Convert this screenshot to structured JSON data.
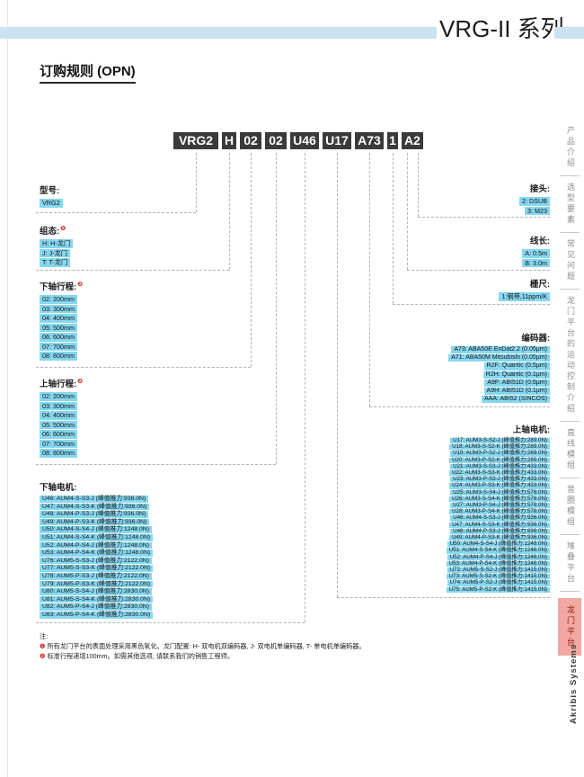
{
  "page": {
    "title": "VRG-II 系列",
    "section_heading": "订购规则 (OPN)",
    "brand": "Akribis Systems",
    "notes_heading": "注:"
  },
  "order_code": {
    "segments": [
      "VRG2",
      "H",
      "02",
      "02",
      "U46",
      "U17",
      "A73",
      "1",
      "A2"
    ]
  },
  "groups": {
    "model": {
      "label": "型号:",
      "sup": "",
      "items": [
        "VRG2"
      ]
    },
    "config": {
      "label": "组态:",
      "sup": "❶",
      "items": [
        "H: H-龙门",
        "J: J-龙门",
        "T: T-龙门"
      ]
    },
    "lower_stroke": {
      "label": "下轴行程:",
      "sup": "❷",
      "items": [
        "02: 200mm",
        "03: 300mm",
        "04: 400mm",
        "05: 500mm",
        "06: 600mm",
        "07: 700mm",
        "08: 800mm"
      ]
    },
    "upper_stroke": {
      "label": "上轴行程:",
      "sup": "❷",
      "items": [
        "02: 200mm",
        "03: 300mm",
        "04: 400mm",
        "05: 500mm",
        "06: 600mm",
        "07: 700mm",
        "08: 800mm"
      ]
    },
    "lower_motor": {
      "label": "下轴电机:",
      "sup": "",
      "items": [
        "U46: AUM4-S-S3-J (峰值推力:936.0N)",
        "U47: AUM4-S-S3-K (峰值推力:936.0N)",
        "U48: AUM4-P-S3-J (峰值推力:936.0N)",
        "U49: AUM4-P-S3-K (峰值推力:936.0N)",
        "U50: AUM4-S-S4-J (峰值推力:1248.0N)",
        "U51: AUM4-S-S4-K (峰值推力:1248.0N)",
        "U52: AUM4-P-S4-J (峰值推力:1248.0N)",
        "U53: AUM4-P-S4-K (峰值推力:1248.0N)",
        "U76: AUM5-S-S3-J (峰值推力:2122.0N)",
        "U77: AUM5-S-S3-K (峰值推力:2122.0N)",
        "U78: AUM5-P-S3-J (峰值推力:2122.0N)",
        "U79: AUM5-P-S3-K (峰值推力:2122.0N)",
        "U80: AUM5-S-S4-J (峰值推力:2830.0N)",
        "U81: AUM5-S-S4-K (峰值推力:2830.0N)",
        "U82: AUM5-P-S4-J (峰值推力:2830.0N)",
        "U83: AUM5-P-S4-K (峰值推力:2830.0N)"
      ]
    },
    "connector": {
      "label": "接头:",
      "sup": "",
      "items": [
        "2: DSUB",
        "3: M23"
      ]
    },
    "cable_length": {
      "label": "线长:",
      "sup": "",
      "items": [
        "A: 0.5m",
        "B: 3.0m"
      ]
    },
    "scale": {
      "label": "栅尺:",
      "sup": "",
      "items": [
        "1:钢带,11ppm/K"
      ]
    },
    "encoder": {
      "label": "编码器:",
      "sup": "",
      "items": [
        "A73: ABA50E EnDat2.2 (0.05μm)",
        "A71: ABA50M Mitsubishi (0.05μm)",
        "R2F: Quantic (0.5μm)",
        "R2H: Quantic (0.1μm)",
        "A9F: ABI51D (0.5μm)",
        "A9H: ABI51D (0.1μm)",
        "AAA: ABI52 (SINCOS)"
      ]
    },
    "upper_motor": {
      "label": "上轴电机:",
      "sup": "",
      "items": [
        "U17: AUM3-S-S2-J (峰值推力:289.0N)",
        "U18: AUM3-S-S2-K (峰值推力:289.0N)",
        "U19: AUM3-P-S2-J (峰值推力:289.0N)",
        "U20: AUM3-P-S2-K (峰值推力:289.0N)",
        "U21: AUM3-S-S3-J (峰值推力:433.0N)",
        "U22: AUM3-S-S3-K (峰值推力:433.0N)",
        "U23: AUM3-P-S3-J (峰值推力:433.0N)",
        "U24: AUM3-P-S3-K (峰值推力:433.0N)",
        "U25: AUM3-S-S4-J (峰值推力:578.0N)",
        "U26: AUM3-S-S4-K (峰值推力:578.0N)",
        "U27: AUM3-P-S4-J (峰值推力:578.0N)",
        "U28: AUM3-P-S4-K (峰值推力:578.0N)",
        "U46: AUM4-S-S3-J (峰值推力:936.0N)",
        "U47: AUM4-S-S3-K (峰值推力:936.0N)",
        "U48: AUM4-P-S3-J (峰值推力:936.0N)",
        "U49: AUM4-P-S3-K (峰值推力:936.0N)",
        "U50: AUM4-S-S4-J (峰值推力:1248.0N)",
        "U51: AUM4-S-S4-K (峰值推力:1248.0N)",
        "U52: AUM4-P-S4-J (峰值推力:1248.0N)",
        "U53: AUM4-P-S4-K (峰值推力:1248.0N)",
        "U72: AUM5-S-S2-J (峰值推力:1415.0N)",
        "U73: AUM5-S-S2-K (峰值推力:1415.0N)",
        "U74: AUM5-P-S2-J (峰值推力:1415.0N)",
        "U75: AUM5-P-S2-K (峰值推力:1415.0N)"
      ]
    }
  },
  "notes": [
    {
      "marker": "❶",
      "text": "所有龙门平台的表面处理采用黑色氧化。龙门配置: H- 双电机双编码器, J- 双电机单编码器, T- 单电机单编码器。"
    },
    {
      "marker": "❷",
      "text": "标准行程递增100mm。如需其他选项, 请联系我们的销售工程师。"
    }
  ],
  "sidebar": {
    "tabs": [
      {
        "label": "产品介绍",
        "active": false
      },
      {
        "label": "选型要素",
        "active": false
      },
      {
        "label": "常见问题",
        "active": false
      },
      {
        "label": "龙门平台的运动控制介绍",
        "active": false
      },
      {
        "label": "直线模组",
        "active": false
      },
      {
        "label": "音圈模组",
        "active": false
      },
      {
        "label": "堆叠平台",
        "active": false
      },
      {
        "label": "龙门平台",
        "active": true
      }
    ]
  },
  "colors": {
    "accent": "#87d7f0",
    "codebox_bg": "#3a3a3c",
    "band": "#cbe2f2",
    "active_bg": "#f2a8a2",
    "note_red": "#d42b1e"
  }
}
